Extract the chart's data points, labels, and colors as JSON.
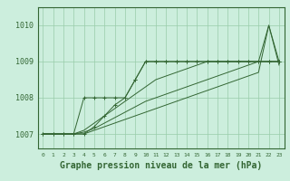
{
  "background_color": "#cceedd",
  "grid_color": "#99ccaa",
  "line_color": "#336633",
  "marker": "+",
  "title": "Graphe pression niveau de la mer (hPa)",
  "title_fontsize": 7,
  "ylabel_ticks": [
    1007,
    1008,
    1009,
    1010
  ],
  "xlim": [
    -0.5,
    23.5
  ],
  "ylim": [
    1006.6,
    1010.5
  ],
  "series": [
    [
      1007.0,
      1007.0,
      1007.0,
      1007.0,
      1007.0,
      1007.2,
      1007.5,
      1007.8,
      1008.0,
      1008.5,
      1009.0,
      1009.0,
      1009.0,
      1009.0,
      1009.0,
      1009.0,
      1009.0,
      1009.0,
      1009.0,
      1009.0,
      1009.0,
      1009.0,
      1009.0,
      1009.0
    ],
    [
      1007.0,
      1007.0,
      1007.0,
      1007.0,
      1008.0,
      1008.0,
      1008.0,
      1008.0,
      1008.0,
      1008.5,
      1009.0,
      1009.0,
      1009.0,
      1009.0,
      1009.0,
      1009.0,
      1009.0,
      1009.0,
      1009.0,
      1009.0,
      1009.0,
      1009.0,
      1009.0,
      1009.0
    ],
    [
      1007.0,
      1007.0,
      1007.0,
      1007.0,
      1007.1,
      1007.3,
      1007.5,
      1007.7,
      1007.9,
      1008.1,
      1008.3,
      1008.5,
      1008.6,
      1008.7,
      1008.8,
      1008.9,
      1009.0,
      1009.0,
      1009.0,
      1009.0,
      1009.0,
      1009.0,
      1009.0,
      1009.0
    ],
    [
      1007.0,
      1007.0,
      1007.0,
      1007.0,
      1007.05,
      1007.15,
      1007.3,
      1007.45,
      1007.6,
      1007.75,
      1007.9,
      1008.0,
      1008.1,
      1008.2,
      1008.3,
      1008.4,
      1008.5,
      1008.6,
      1008.7,
      1008.8,
      1008.9,
      1009.0,
      1010.0,
      1009.0
    ],
    [
      1007.0,
      1007.0,
      1007.0,
      1007.0,
      1007.0,
      1007.1,
      1007.2,
      1007.3,
      1007.4,
      1007.5,
      1007.6,
      1007.7,
      1007.8,
      1007.9,
      1008.0,
      1008.1,
      1008.2,
      1008.3,
      1008.4,
      1008.5,
      1008.6,
      1008.7,
      1010.0,
      1008.9
    ]
  ],
  "markers_on_series": [
    0,
    1
  ],
  "xtick_labels": [
    "0",
    "1",
    "2",
    "3",
    "4",
    "5",
    "6",
    "7",
    "8",
    "9",
    "10",
    "11",
    "12",
    "13",
    "14",
    "15",
    "16",
    "17",
    "18",
    "19",
    "20",
    "21",
    "22",
    "23"
  ]
}
